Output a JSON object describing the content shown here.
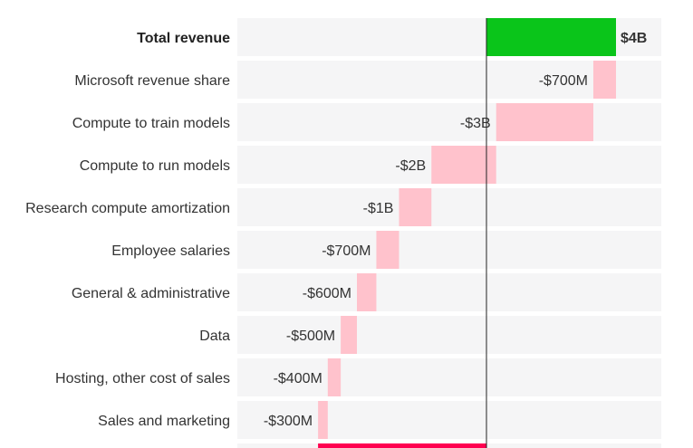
{
  "chart_data": {
    "type": "bar",
    "subtype": "waterfall",
    "orientation": "horizontal",
    "unit": "USD millions",
    "categories": [
      "Total revenue",
      "Microsoft revenue share",
      "Compute to train models",
      "Compute to run models",
      "Research compute amortization",
      "Employee salaries",
      "General & administrative",
      "Data",
      "Hosting, other cost of sales",
      "Sales and marketing",
      ""
    ],
    "values": [
      4000,
      -700,
      -3000,
      -2000,
      -1000,
      -700,
      -600,
      -500,
      -400,
      -300,
      -5200
    ],
    "value_labels": [
      "$4B",
      "-$700M",
      "-$3B",
      "-$2B",
      "-$1B",
      "-$700M",
      "-$600M",
      "-$500M",
      "-$400M",
      "-$300M",
      ""
    ],
    "kinds": [
      "total",
      "delta",
      "delta",
      "delta",
      "delta",
      "delta",
      "delta",
      "delta",
      "delta",
      "delta",
      "total"
    ],
    "colors": {
      "revenue": "#0ac51a",
      "expense": "#ffc2cc",
      "net": "#ff0050",
      "row_bg": "#f5f5f6",
      "zero_line": "#222222"
    },
    "grid": false,
    "legend": "none"
  }
}
